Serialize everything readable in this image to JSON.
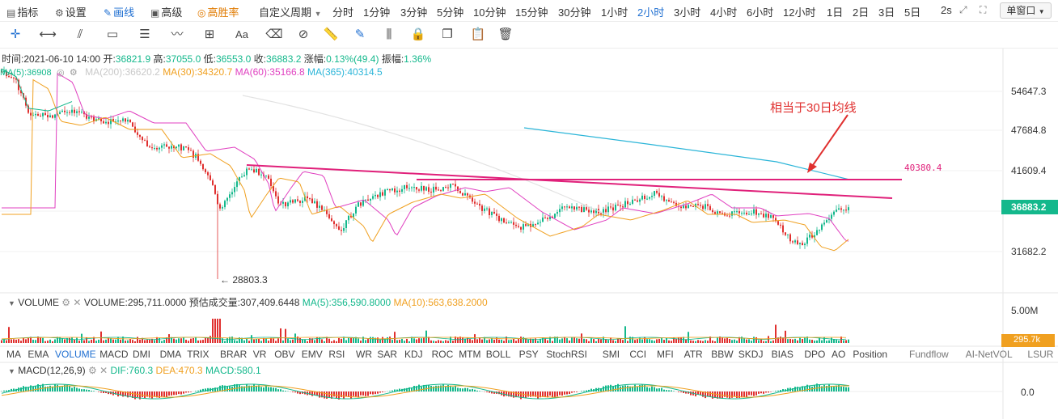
{
  "topbar": {
    "items": [
      {
        "icon": "bar-chart-icon",
        "label": "指标"
      },
      {
        "icon": "gear-icon",
        "label": "设置"
      },
      {
        "icon": "pencil-icon",
        "label": "画线",
        "active": true
      },
      {
        "icon": "calendar-icon",
        "label": "高级"
      },
      {
        "icon": "target-icon",
        "label": "高胜率",
        "hot": true
      }
    ],
    "custom_period": "自定义周期",
    "periods": [
      "分时",
      "1分钟",
      "3分钟",
      "5分钟",
      "10分钟",
      "15分钟",
      "30分钟",
      "1小时",
      "2小时",
      "3小时",
      "4小时",
      "6小时",
      "12小时",
      "1日",
      "2日",
      "3日",
      "5日"
    ],
    "active_period": "2小时",
    "refresh": "2s",
    "window_button": "单窗口"
  },
  "info_line": {
    "time_label": "时间:",
    "time": "2021-06-10 14:00",
    "open_label": "开:",
    "open": "36821.9",
    "high_label": "高:",
    "high": "37055.0",
    "low_label": "低:",
    "low": "36553.0",
    "close_label": "收:",
    "close": "36883.2",
    "change_label": "涨幅:",
    "change": "0.13%(49.4)",
    "amplitude_label": "振幅:",
    "amplitude": "1.36%"
  },
  "ma_line": {
    "ma5": "MA(5):36908",
    "ma200": "MA(200):36620.2",
    "ma30": "MA(30):34320.7",
    "ma60": "MA(60):35166.8",
    "ma365": "MA(365):40314.5"
  },
  "price_axis": [
    "54647.3",
    "47684.8",
    "41609.4",
    "36883.2",
    "31682.2"
  ],
  "low_marker": "← 28803.3",
  "annotation": "相当于30日均线",
  "line_price_label": "40380.4",
  "volume": {
    "title": "VOLUME",
    "value": "VOLUME:295,711.0000",
    "estimate": "预估成交量:307,409.6448",
    "ma5": "MA(5):356,590.8000",
    "ma10": "MA(10):563,638.2000",
    "axis_top": "5.00M",
    "current": "295.7k"
  },
  "indicator_tabs": [
    "MA",
    "EMA",
    "VOLUME",
    "MACD",
    "DMI",
    "DMA",
    "TRIX",
    "BRAR",
    "VR",
    "OBV",
    "EMV",
    "RSI",
    "WR",
    "SAR",
    "KDJ",
    "ROC",
    "MTM",
    "BOLL",
    "PSY",
    "StochRSI",
    "SMI",
    "CCI",
    "MFI",
    "ATR",
    "BBW",
    "SKDJ",
    "BIAS",
    "DPO",
    "AO",
    "Position",
    "Fundflow",
    "AI-NetVOL",
    "LSUR"
  ],
  "active_indicator": "VOLUME",
  "macd": {
    "title": "MACD(12,26,9)",
    "dif": "DIF:760.3",
    "dea": "DEA:470.3",
    "macd": "MACD:580.1",
    "axis_zero": "0.0"
  },
  "colors": {
    "up": "#14b88c",
    "down": "#e0302f",
    "accent": "#1f6fd1",
    "trendline": "#e0207a",
    "ma365": "#2bb5d8"
  }
}
